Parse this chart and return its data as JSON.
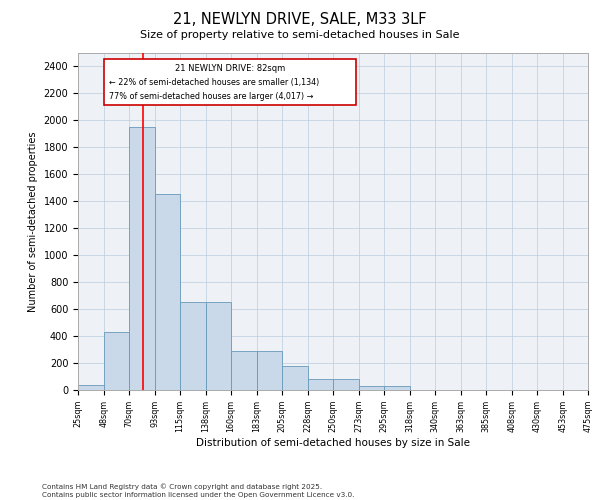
{
  "title": "21, NEWLYN DRIVE, SALE, M33 3LF",
  "subtitle": "Size of property relative to semi-detached houses in Sale",
  "xlabel": "Distribution of semi-detached houses by size in Sale",
  "ylabel": "Number of semi-detached properties",
  "property_label": "21 NEWLYN DRIVE: 82sqm",
  "pct_smaller": 22,
  "pct_larger": 77,
  "count_smaller": 1134,
  "count_larger": 4017,
  "bin_edges": [
    25,
    48,
    70,
    93,
    115,
    138,
    160,
    183,
    205,
    228,
    250,
    273,
    295,
    318,
    340,
    363,
    385,
    408,
    430,
    453,
    475
  ],
  "bar_heights": [
    40,
    430,
    1950,
    1450,
    650,
    650,
    290,
    290,
    175,
    80,
    80,
    30,
    30,
    0,
    0,
    0,
    0,
    0,
    0,
    0
  ],
  "bar_color": "#c9d9e9",
  "bar_edge_color": "#6699bb",
  "red_line_x": 82,
  "background_color": "#eef2f7",
  "grid_color": "#bbccdd",
  "ylim": [
    0,
    2500
  ],
  "yticks": [
    0,
    200,
    400,
    600,
    800,
    1000,
    1200,
    1400,
    1600,
    1800,
    2000,
    2200,
    2400
  ],
  "footer": "Contains HM Land Registry data © Crown copyright and database right 2025.\nContains public sector information licensed under the Open Government Licence v3.0."
}
